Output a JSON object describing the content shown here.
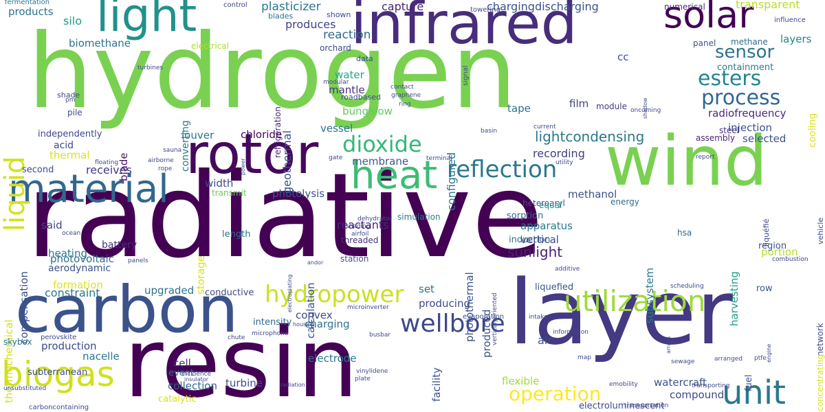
{
  "words": [
    {
      "text": "radiative",
      "color": "#440154",
      "rotated": false
    },
    {
      "text": "hydrogen",
      "color": "#7ad151",
      "rotated": false
    },
    {
      "text": "resin",
      "color": "#440154",
      "rotated": false
    },
    {
      "text": "layer",
      "color": "#443983",
      "rotated": false
    },
    {
      "text": "carbon",
      "color": "#3b528b",
      "rotated": false
    },
    {
      "text": "wind",
      "color": "#7ad151",
      "rotated": false
    },
    {
      "text": "infrared",
      "color": "#472d7b",
      "rotated": false
    },
    {
      "text": "rotor",
      "color": "#46085c",
      "rotated": false
    },
    {
      "text": "material",
      "color": "#31688e",
      "rotated": false
    },
    {
      "text": "heat",
      "color": "#3dbc74",
      "rotated": false
    },
    {
      "text": "light",
      "color": "#21918c",
      "rotated": false
    },
    {
      "text": "solar",
      "color": "#440154",
      "rotated": false
    },
    {
      "text": "utilization",
      "color": "#a0da39",
      "rotated": false
    },
    {
      "text": "biogas",
      "color": "#d0e11c",
      "rotated": false
    },
    {
      "text": "unit",
      "color": "#2a788e",
      "rotated": false
    },
    {
      "text": "wellbore",
      "color": "#3e4989",
      "rotated": false
    },
    {
      "text": "hydropower",
      "color": "#cae11f",
      "rotated": false
    },
    {
      "text": "reflection",
      "color": "#2a788e",
      "rotated": false
    },
    {
      "text": "dioxide",
      "color": "#35b779",
      "rotated": false
    },
    {
      "text": "operation",
      "color": "#fde725",
      "rotated": false
    },
    {
      "text": "process",
      "color": "#31688e",
      "rotated": false
    },
    {
      "text": "esters",
      "color": "#25858e",
      "rotated": false
    },
    {
      "text": "sensor",
      "color": "#2c728e",
      "rotated": false
    },
    {
      "text": "liquid",
      "color": "#d2e21b",
      "rotated": true
    },
    {
      "text": "lightcondensing",
      "color": "#2a788e",
      "rotated": false
    },
    {
      "text": "sunlight",
      "color": "#482173",
      "rotated": false
    },
    {
      "text": "plasticizer",
      "color": "#2a788e",
      "rotated": false
    },
    {
      "text": "capture",
      "color": "#482475",
      "rotated": false
    },
    {
      "text": "chargingdischarging",
      "color": "#3b528b",
      "rotated": false
    },
    {
      "text": "transparent",
      "color": "#b8de29",
      "rotated": false
    },
    {
      "text": "numerical",
      "color": "#472c7a",
      "rotated": false
    },
    {
      "text": "products",
      "color": "#2c728e",
      "rotated": false
    },
    {
      "text": "silo",
      "color": "#1f9e89",
      "rotated": false
    },
    {
      "text": "biomethane",
      "color": "#2c728e",
      "rotated": false
    },
    {
      "text": "produces",
      "color": "#414487",
      "rotated": false
    },
    {
      "text": "reaction",
      "color": "#31688e",
      "rotated": false
    },
    {
      "text": "orchard",
      "color": "#3e4989",
      "rotated": false
    },
    {
      "text": "electrical",
      "color": "#addc30",
      "rotated": false
    },
    {
      "text": "layers",
      "color": "#26828e",
      "rotated": false
    },
    {
      "text": "panel",
      "color": "#3b528b",
      "rotated": false
    },
    {
      "text": "methane",
      "color": "#2e6e8e",
      "rotated": false
    },
    {
      "text": "cc",
      "color": "#3b528b",
      "rotated": false
    },
    {
      "text": "containment",
      "color": "#287d8e",
      "rotated": false
    },
    {
      "text": "water",
      "color": "#21a685",
      "rotated": false
    },
    {
      "text": "mantle",
      "color": "#463480",
      "rotated": false
    },
    {
      "text": "converting",
      "color": "#2a788e",
      "rotated": true
    },
    {
      "text": "geothermal",
      "color": "#3b528b",
      "rotated": true
    },
    {
      "text": "refrigeration",
      "color": "#482878",
      "rotated": true
    },
    {
      "text": "configured",
      "color": "#2a788e",
      "rotated": true
    },
    {
      "text": "radiofrequency",
      "color": "#482677",
      "rotated": false
    },
    {
      "text": "cooling",
      "color": "#dde318",
      "rotated": true
    },
    {
      "text": "film",
      "color": "#414487",
      "rotated": false
    },
    {
      "text": "module",
      "color": "#443a83",
      "rotated": false
    },
    {
      "text": "bungalow",
      "color": "#5ec962",
      "rotated": false
    },
    {
      "text": "tape",
      "color": "#2d708e",
      "rotated": false
    },
    {
      "text": "injection",
      "color": "#3b528b",
      "rotated": false
    },
    {
      "text": "steel",
      "color": "#46327e",
      "rotated": false
    },
    {
      "text": "assembly",
      "color": "#481f70",
      "rotated": false
    },
    {
      "text": "selected",
      "color": "#3b528b",
      "rotated": false
    },
    {
      "text": "louver",
      "color": "#2c728e",
      "rotated": false
    },
    {
      "text": "chloride",
      "color": "#440154",
      "rotated": false
    },
    {
      "text": "vessel",
      "color": "#2c728e",
      "rotated": false
    },
    {
      "text": "independently",
      "color": "#3e4989",
      "rotated": false
    },
    {
      "text": "acid",
      "color": "#3e4989",
      "rotated": false
    },
    {
      "text": "thermal",
      "color": "#d8e219",
      "rotated": false
    },
    {
      "text": "blade",
      "color": "#481467",
      "rotated": true
    },
    {
      "text": "recording",
      "color": "#424086",
      "rotated": false
    },
    {
      "text": "membrane",
      "color": "#38598c",
      "rotated": false
    },
    {
      "text": "receives",
      "color": "#453781",
      "rotated": false
    },
    {
      "text": "second",
      "color": "#3e4989",
      "rotated": false
    },
    {
      "text": "width",
      "color": "#3e4989",
      "rotated": false
    },
    {
      "text": "transmit",
      "color": "#6ccd5a",
      "rotated": false
    },
    {
      "text": "photolysis",
      "color": "#3b528b",
      "rotated": false
    },
    {
      "text": "heteroaryl",
      "color": "#3b528b",
      "rotated": false
    },
    {
      "text": "sorption",
      "color": "#31688e",
      "rotated": false
    },
    {
      "text": "methanol",
      "color": "#3b528b",
      "rotated": false
    },
    {
      "text": "equal",
      "color": "#21918c",
      "rotated": false
    },
    {
      "text": "energy",
      "color": "#2e6e8e",
      "rotated": false
    },
    {
      "text": "hsa",
      "color": "#31688e",
      "rotated": false
    },
    {
      "text": "simulation",
      "color": "#287d8e",
      "rotated": false
    },
    {
      "text": "said",
      "color": "#414487",
      "rotated": false
    },
    {
      "text": "battery",
      "color": "#472c7a",
      "rotated": false
    },
    {
      "text": "length",
      "color": "#2c728e",
      "rotated": false
    },
    {
      "text": "reactants",
      "color": "#482878",
      "rotated": false
    },
    {
      "text": "induction",
      "color": "#2c728e",
      "rotated": false
    },
    {
      "text": "apparatus",
      "color": "#2a788e",
      "rotated": false
    },
    {
      "text": "vertical",
      "color": "#414487",
      "rotated": false
    },
    {
      "text": "subsystem",
      "color": "#2a788e",
      "rotated": true
    },
    {
      "text": "harvesting",
      "color": "#1f9e89",
      "rotated": true
    },
    {
      "text": "portion",
      "color": "#b5de2b",
      "rotated": false
    },
    {
      "text": "region",
      "color": "#3b528b",
      "rotated": false
    },
    {
      "text": "photovoltaic",
      "color": "#2e6e8e",
      "rotated": false
    },
    {
      "text": "compensation",
      "color": "#3b528b",
      "rotated": true
    },
    {
      "text": "thermochemical",
      "color": "#d5e21a",
      "rotated": true
    },
    {
      "text": "heating",
      "color": "#2a788e",
      "rotated": false
    },
    {
      "text": "aerodynamic",
      "color": "#3b528b",
      "rotated": false
    },
    {
      "text": "storage",
      "color": "#d8e219",
      "rotated": true
    },
    {
      "text": "calculation",
      "color": "#3b528b",
      "rotated": true
    },
    {
      "text": "threaded",
      "color": "#46327e",
      "rotated": false
    },
    {
      "text": "station",
      "color": "#3b528b",
      "rotated": false
    },
    {
      "text": "photothermal",
      "color": "#3b528b",
      "rotated": true
    },
    {
      "text": "produced",
      "color": "#3b528b",
      "rotated": true
    },
    {
      "text": "formation",
      "color": "#dfe318",
      "rotated": false
    },
    {
      "text": "constraint",
      "color": "#2a788e",
      "rotated": false
    },
    {
      "text": "upgraded",
      "color": "#2c728e",
      "rotated": false
    },
    {
      "text": "conductive",
      "color": "#3e4989",
      "rotated": false
    },
    {
      "text": "liquefied",
      "color": "#39568c",
      "rotated": false
    },
    {
      "text": "row",
      "color": "#3b528b",
      "rotated": false
    },
    {
      "text": "set",
      "color": "#2c728e",
      "rotated": false
    },
    {
      "text": "producing",
      "color": "#3e4989",
      "rotated": false
    },
    {
      "text": "convex",
      "color": "#3e4989",
      "rotated": false
    },
    {
      "text": "intensity",
      "color": "#31688e",
      "rotated": false
    },
    {
      "text": "charging",
      "color": "#2c728e",
      "rotated": false
    },
    {
      "text": "production",
      "color": "#3e4989",
      "rotated": false
    },
    {
      "text": "nacelle",
      "color": "#2a788e",
      "rotated": false
    },
    {
      "text": "air",
      "color": "#3b528b",
      "rotated": false
    },
    {
      "text": "electrode",
      "color": "#2a788e",
      "rotated": false
    },
    {
      "text": "cell",
      "color": "#482677",
      "rotated": false
    },
    {
      "text": "event",
      "color": "#2c728e",
      "rotated": false
    },
    {
      "text": "collection",
      "color": "#31688e",
      "rotated": false
    },
    {
      "text": "catalytic",
      "color": "#d5e21a",
      "rotated": false
    },
    {
      "text": "subterranean",
      "color": "#3e4989",
      "rotated": false
    },
    {
      "text": "turbine",
      "color": "#3e4989",
      "rotated": false
    },
    {
      "text": "facility",
      "color": "#3b528b",
      "rotated": true
    },
    {
      "text": "flexible",
      "color": "#a2da37",
      "rotated": false
    },
    {
      "text": "watercraft",
      "color": "#3b528b",
      "rotated": false
    },
    {
      "text": "fuel",
      "color": "#3e4989",
      "rotated": true
    },
    {
      "text": "compound",
      "color": "#3e4989",
      "rotated": false
    },
    {
      "text": "electroluminescent",
      "color": "#3e4989",
      "rotated": false
    },
    {
      "text": "network",
      "color": "#3e4989",
      "rotated": true
    },
    {
      "text": "concentrating",
      "color": "#d8e219",
      "rotated": true
    },
    {
      "text": "skybox",
      "color": "#2c728e",
      "rotated": false
    },
    {
      "text": "fermentation",
      "color": "#2c728e",
      "rotated": false
    },
    {
      "text": "control",
      "color": "#3e4989",
      "rotated": false
    },
    {
      "text": "blades",
      "color": "#2c728e",
      "rotated": false
    },
    {
      "text": "shown",
      "color": "#3e4989",
      "rotated": false
    },
    {
      "text": "towering",
      "color": "#3e4989",
      "rotated": false
    },
    {
      "text": "influence",
      "color": "#3e4989",
      "rotated": false
    },
    {
      "text": "turbines",
      "color": "#3e4989",
      "rotated": false
    },
    {
      "text": "data",
      "color": "#3e4989",
      "rotated": false
    },
    {
      "text": "signal",
      "color": "#3e4989",
      "rotated": true
    },
    {
      "text": "modular",
      "color": "#3e4989",
      "rotated": false
    },
    {
      "text": "roadbased",
      "color": "#3e4989",
      "rotated": false
    },
    {
      "text": "contact",
      "color": "#3e4989",
      "rotated": false
    },
    {
      "text": "graphene",
      "color": "#3e4989",
      "rotated": false
    },
    {
      "text": "ring",
      "color": "#3e4989",
      "rotated": false
    },
    {
      "text": "shadow",
      "color": "#3e4989",
      "rotated": true
    },
    {
      "text": "oncoming",
      "color": "#3e4989",
      "rotated": false
    },
    {
      "text": "shade",
      "color": "#3e4989",
      "rotated": false
    },
    {
      "text": "pm",
      "color": "#3e4989",
      "rotated": false
    },
    {
      "text": "pile",
      "color": "#3e4989",
      "rotated": false
    },
    {
      "text": "current",
      "color": "#3e4989",
      "rotated": false
    },
    {
      "text": "basin",
      "color": "#3e4989",
      "rotated": false
    },
    {
      "text": "sauna",
      "color": "#3e4989",
      "rotated": false
    },
    {
      "text": "airborne",
      "color": "#3e4989",
      "rotated": false
    },
    {
      "text": "rope",
      "color": "#3e4989",
      "rotated": false
    },
    {
      "text": "floating",
      "color": "#3e4989",
      "rotated": false
    },
    {
      "text": "power",
      "color": "#3e4989",
      "rotated": true
    },
    {
      "text": "gate",
      "color": "#3e4989",
      "rotated": false
    },
    {
      "text": "terminal",
      "color": "#3e4989",
      "rotated": false
    },
    {
      "text": "utility",
      "color": "#3e4989",
      "rotated": false
    },
    {
      "text": "report",
      "color": "#3e4989",
      "rotated": false
    },
    {
      "text": "liquéfié",
      "color": "#3e4989",
      "rotated": true
    },
    {
      "text": "vehicle",
      "color": "#3e4989",
      "rotated": true
    },
    {
      "text": "dehydrator",
      "color": "#3e4989",
      "rotated": false
    },
    {
      "text": "shading",
      "color": "#3e4989",
      "rotated": false
    },
    {
      "text": "airfoil",
      "color": "#3e4989",
      "rotated": false
    },
    {
      "text": "electroplating",
      "color": "#3e4989",
      "rotated": true
    },
    {
      "text": "microinverter",
      "color": "#3e4989",
      "rotated": false
    },
    {
      "text": "microphone",
      "color": "#3e4989",
      "rotated": false
    },
    {
      "text": "busbar",
      "color": "#3e4989",
      "rotated": false
    },
    {
      "text": "housing",
      "color": "#3e4989",
      "rotated": false
    },
    {
      "text": "evaporation",
      "color": "#3e4989",
      "rotated": false
    },
    {
      "text": "verticalyoriented",
      "color": "#3e4989",
      "rotated": true
    },
    {
      "text": "intake",
      "color": "#3e4989",
      "rotated": false
    },
    {
      "text": "arrays",
      "color": "#3e4989",
      "rotated": true
    },
    {
      "text": "information",
      "color": "#3e4989",
      "rotated": false
    },
    {
      "text": "engine",
      "color": "#3e4989",
      "rotated": true
    },
    {
      "text": "additive",
      "color": "#3e4989",
      "rotated": false
    },
    {
      "text": "scheduling",
      "color": "#3e4989",
      "rotated": false
    },
    {
      "text": "combustion",
      "color": "#3e4989",
      "rotated": false
    },
    {
      "text": "ocean",
      "color": "#3e4989",
      "rotated": false
    },
    {
      "text": "panels",
      "color": "#3e4989",
      "rotated": false
    },
    {
      "text": "andor",
      "color": "#3e4989",
      "rotated": false
    },
    {
      "text": "perovskite",
      "color": "#3e4989",
      "rotated": false
    },
    {
      "text": "chute",
      "color": "#3e4989",
      "rotated": false
    },
    {
      "text": "map",
      "color": "#3e4989",
      "rotated": false
    },
    {
      "text": "incidence",
      "color": "#3e4989",
      "rotated": false
    },
    {
      "text": "insulator",
      "color": "#3e4989",
      "rotated": false
    },
    {
      "text": "vinylidene",
      "color": "#3e4989",
      "rotated": false
    },
    {
      "text": "plate",
      "color": "#3e4989",
      "rotated": false
    },
    {
      "text": "unsubstituted",
      "color": "#3e4989",
      "rotated": false
    },
    {
      "text": "radiation",
      "color": "#3e4989",
      "rotated": false
    },
    {
      "text": "sewage",
      "color": "#3e4989",
      "rotated": false
    },
    {
      "text": "arranged",
      "color": "#3e4989",
      "rotated": false
    },
    {
      "text": "ptfe",
      "color": "#3e4989",
      "rotated": false
    },
    {
      "text": "emobility",
      "color": "#3e4989",
      "rotated": false
    },
    {
      "text": "transporting",
      "color": "#3e4989",
      "rotated": false
    },
    {
      "text": "carboncontaining",
      "color": "#3e4989",
      "rotated": false
    },
    {
      "text": "transportation",
      "color": "#3e4989",
      "rotated": false
    }
  ]
}
